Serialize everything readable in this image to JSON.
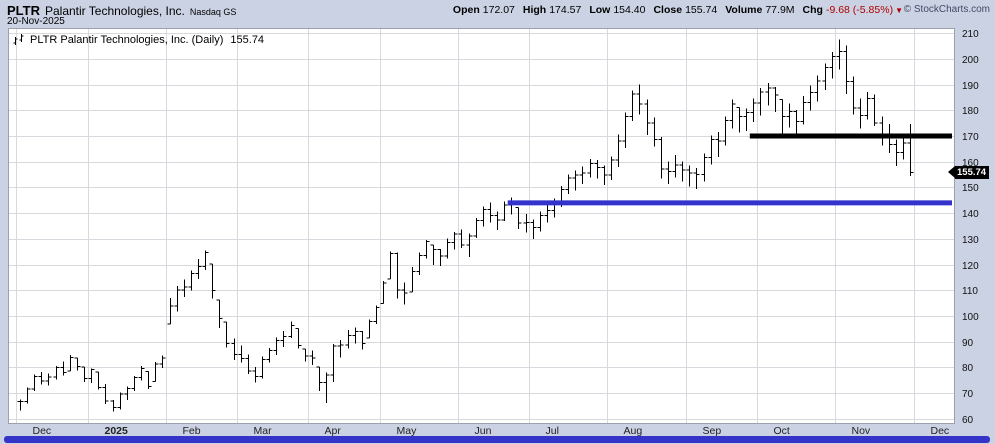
{
  "header": {
    "symbol": "PLTR",
    "company": "Palantir Technologies, Inc.",
    "exchange": "Nasdaq GS",
    "date": "20-Nov-2025",
    "copyright": "© StockCharts.com",
    "stats": [
      {
        "label": "Open",
        "value": "172.07"
      },
      {
        "label": "High",
        "value": "174.57"
      },
      {
        "label": "Low",
        "value": "154.40"
      },
      {
        "label": "Close",
        "value": "155.74"
      },
      {
        "label": "Volume",
        "value": "77.9M"
      },
      {
        "label": "Chg",
        "value": "-9.68 (-5.85%)",
        "negative": true
      }
    ]
  },
  "icons": {
    "down_arrow": "▼"
  },
  "plot_label": {
    "title": "PLTR Palantir Technologies, Inc. (Daily)",
    "close": "155.74"
  },
  "price_tag": "155.74",
  "colors": {
    "page_bg": "#cbd2e3",
    "support_blue": "#3333cc",
    "support_black": "#000000",
    "negative": "#b00000",
    "tag_bg": "#000000"
  },
  "chart_data": {
    "type": "ohlc_bar",
    "title": "PLTR Palantir Technologies, Inc. (Daily)",
    "last_close": 155.74,
    "ylim": [
      58,
      212
    ],
    "yticks": [
      60,
      70,
      80,
      90,
      100,
      110,
      120,
      130,
      140,
      150,
      160,
      170,
      180,
      190,
      200,
      210
    ],
    "grid": true,
    "months": [
      {
        "label": "Dec",
        "start": 0
      },
      {
        "label": "2025",
        "start": 10,
        "bold": true
      },
      {
        "label": "Feb",
        "start": 21
      },
      {
        "label": "Mar",
        "start": 31
      },
      {
        "label": "Apr",
        "start": 41
      },
      {
        "label": "May",
        "start": 51
      },
      {
        "label": "Jun",
        "start": 62
      },
      {
        "label": "Jul",
        "start": 72
      },
      {
        "label": "Aug",
        "start": 83
      },
      {
        "label": "Sep",
        "start": 94
      },
      {
        "label": "Oct",
        "start": 104
      },
      {
        "label": "Nov",
        "start": 115
      },
      {
        "label": "Dec",
        "start": 126
      }
    ],
    "support_lines": [
      {
        "color": "#3333cc",
        "price": 144,
        "start": 69
      },
      {
        "color": "#000000",
        "price": 170,
        "start": 103
      }
    ],
    "bars": [
      [
        67.5,
        63.2,
        66.8
      ],
      [
        72.2,
        66.0,
        71.6
      ],
      [
        77.3,
        70.8,
        76.5
      ],
      [
        78.2,
        73.4,
        74.8
      ],
      [
        77.6,
        72.9,
        76.2
      ],
      [
        80.6,
        75.4,
        80.0
      ],
      [
        82.4,
        76.8,
        78.1
      ],
      [
        84.8,
        78.6,
        83.9
      ],
      [
        83.6,
        78.9,
        80.4
      ],
      [
        80.1,
        74.3,
        75.6
      ],
      [
        79.6,
        74.0,
        79.1
      ],
      [
        78.2,
        71.4,
        72.1
      ],
      [
        73.6,
        65.8,
        67.0
      ],
      [
        67.4,
        62.8,
        64.4
      ],
      [
        70.2,
        63.6,
        69.6
      ],
      [
        72.6,
        67.4,
        71.9
      ],
      [
        76.6,
        70.9,
        76.1
      ],
      [
        80.6,
        74.9,
        79.6
      ],
      [
        78.4,
        71.7,
        72.6
      ],
      [
        82.2,
        74.6,
        81.4
      ],
      [
        84.6,
        79.8,
        83.7
      ],
      [
        107.0,
        96.8,
        103.8
      ],
      [
        111.6,
        101.8,
        110.1
      ],
      [
        114.1,
        107.4,
        111.2
      ],
      [
        117.6,
        109.9,
        116.6
      ],
      [
        122.1,
        114.4,
        119.2
      ],
      [
        125.4,
        117.9,
        124.6
      ],
      [
        120.2,
        106.8,
        110.0
      ],
      [
        106.2,
        95.4,
        99.1
      ],
      [
        97.6,
        87.8,
        89.4
      ],
      [
        91.2,
        82.9,
        85.0
      ],
      [
        88.6,
        81.9,
        83.4
      ],
      [
        85.1,
        77.4,
        78.6
      ],
      [
        80.1,
        74.2,
        76.4
      ],
      [
        84.2,
        75.6,
        83.1
      ],
      [
        87.6,
        81.9,
        86.6
      ],
      [
        91.6,
        84.9,
        90.4
      ],
      [
        94.1,
        87.9,
        92.1
      ],
      [
        97.8,
        91.4,
        96.4
      ],
      [
        95.1,
        87.4,
        88.6
      ],
      [
        87.2,
        82.4,
        84.4
      ],
      [
        86.6,
        80.9,
        83.6
      ],
      [
        80.2,
        70.9,
        74.1
      ],
      [
        78.1,
        66.1,
        77.1
      ],
      [
        89.1,
        74.4,
        88.4
      ],
      [
        90.6,
        83.9,
        88.7
      ],
      [
        94.6,
        87.4,
        92.5
      ],
      [
        95.6,
        89.4,
        93.9
      ],
      [
        94.2,
        86.9,
        89.4
      ],
      [
        98.6,
        91.4,
        97.9
      ],
      [
        104.1,
        96.9,
        103.4
      ],
      [
        113.6,
        104.9,
        112.9
      ],
      [
        125.1,
        114.4,
        124.3
      ],
      [
        124.6,
        106.9,
        110.1
      ],
      [
        113.1,
        104.4,
        108.9
      ],
      [
        119.1,
        109.4,
        117.4
      ],
      [
        124.6,
        115.9,
        123.6
      ],
      [
        129.6,
        122.4,
        128.9
      ],
      [
        127.6,
        119.9,
        125.9
      ],
      [
        126.1,
        119.4,
        123.4
      ],
      [
        130.1,
        122.4,
        128.6
      ],
      [
        132.6,
        125.9,
        131.8
      ],
      [
        133.6,
        126.4,
        127.7
      ],
      [
        132.1,
        122.9,
        131.1
      ],
      [
        138.1,
        130.4,
        137.1
      ],
      [
        142.6,
        134.9,
        141.4
      ],
      [
        144.1,
        136.4,
        139.1
      ],
      [
        140.6,
        133.4,
        137.4
      ],
      [
        144.6,
        136.9,
        143.1
      ],
      [
        146.1,
        139.4,
        144.1
      ],
      [
        142.1,
        133.9,
        136.1
      ],
      [
        139.6,
        132.4,
        136.4
      ],
      [
        137.6,
        129.9,
        134.4
      ],
      [
        140.6,
        132.9,
        139.1
      ],
      [
        143.1,
        136.4,
        141.1
      ],
      [
        145.6,
        138.4,
        143.6
      ],
      [
        150.6,
        142.4,
        149.1
      ],
      [
        155.1,
        147.4,
        153.6
      ],
      [
        156.6,
        148.9,
        154.9
      ],
      [
        158.1,
        151.4,
        155.6
      ],
      [
        161.1,
        153.9,
        159.4
      ],
      [
        160.6,
        153.4,
        157.7
      ],
      [
        158.6,
        150.9,
        154.9
      ],
      [
        162.1,
        152.9,
        160.7
      ],
      [
        170.6,
        157.9,
        168.1
      ],
      [
        179.1,
        165.4,
        177.6
      ],
      [
        187.6,
        175.9,
        186.4
      ],
      [
        190.0,
        178.4,
        182.4
      ],
      [
        184.1,
        170.4,
        175.1
      ],
      [
        177.1,
        165.9,
        168.6
      ],
      [
        169.6,
        153.4,
        157.1
      ],
      [
        160.1,
        151.4,
        156.1
      ],
      [
        162.6,
        153.9,
        158.7
      ],
      [
        160.1,
        152.4,
        156.7
      ],
      [
        158.6,
        150.4,
        155.6
      ],
      [
        157.6,
        149.4,
        155.1
      ],
      [
        163.1,
        152.4,
        161.6
      ],
      [
        170.1,
        158.9,
        168.6
      ],
      [
        171.6,
        161.9,
        168.1
      ],
      [
        177.6,
        166.4,
        176.1
      ],
      [
        184.1,
        172.9,
        182.4
      ],
      [
        181.1,
        171.4,
        177.6
      ],
      [
        180.6,
        171.9,
        179.1
      ],
      [
        184.6,
        175.4,
        182.8
      ],
      [
        188.6,
        177.9,
        187.1
      ],
      [
        190.6,
        181.9,
        188.6
      ],
      [
        189.1,
        179.4,
        185.9
      ],
      [
        184.1,
        169.9,
        177.6
      ],
      [
        182.6,
        173.4,
        179.6
      ],
      [
        180.1,
        170.9,
        175.7
      ],
      [
        185.6,
        174.4,
        183.1
      ],
      [
        189.6,
        179.9,
        186.9
      ],
      [
        193.6,
        183.4,
        191.3
      ],
      [
        198.1,
        187.9,
        196.6
      ],
      [
        202.6,
        192.4,
        200.9
      ],
      [
        207.5,
        195.9,
        202.8
      ],
      [
        205.1,
        186.4,
        191.1
      ],
      [
        193.1,
        178.4,
        180.9
      ],
      [
        184.6,
        172.9,
        177.9
      ],
      [
        187.1,
        176.4,
        184.6
      ],
      [
        186.1,
        173.9,
        175.1
      ],
      [
        177.6,
        166.4,
        170.4
      ],
      [
        174.6,
        163.4,
        166.7
      ],
      [
        168.6,
        158.4,
        163.5
      ],
      [
        170.1,
        160.9,
        167.3
      ],
      [
        174.6,
        154.4,
        155.74
      ]
    ]
  }
}
